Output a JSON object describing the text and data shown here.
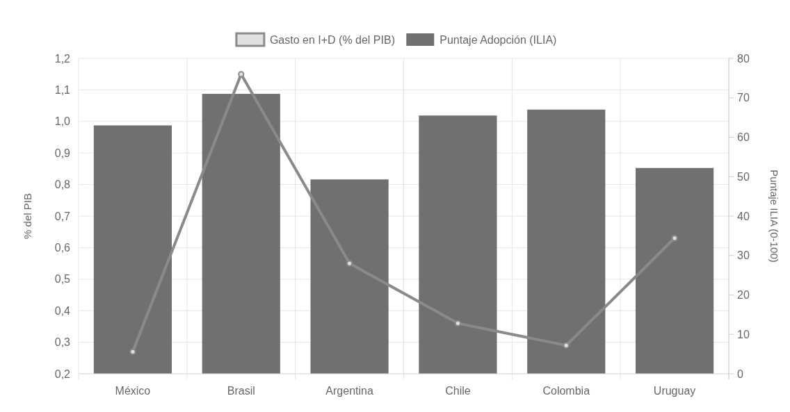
{
  "chart_data": {
    "type": "bar",
    "categories": [
      "México",
      "Brasil",
      "Argentina",
      "Chile",
      "Colombia",
      "Uruguay"
    ],
    "series": [
      {
        "name": "Gasto en I+D (% del PIB)",
        "type": "line",
        "color": "#8a8a8a",
        "values": [
          0.27,
          1.15,
          0.55,
          0.36,
          0.29,
          0.63
        ]
      },
      {
        "name": "Puntaje Adopción (ILIA)",
        "axis": "y2",
        "color": "#707070",
        "values": [
          63,
          71,
          49.3,
          65.5,
          67,
          52.2
        ]
      }
    ],
    "ylabel": "% del PIB",
    "y2label": "Puntaje ILIA (0-100)",
    "ylim": [
      0.2,
      1.2
    ],
    "yticks": [
      {
        "value": 0.2,
        "label": "0,2"
      },
      {
        "value": 0.3,
        "label": "0,3"
      },
      {
        "value": 0.4,
        "label": "0,4"
      },
      {
        "value": 0.5,
        "label": "0,5"
      },
      {
        "value": 0.6,
        "label": "0,6"
      },
      {
        "value": 0.7,
        "label": "0,7"
      },
      {
        "value": 0.8,
        "label": "0,8"
      },
      {
        "value": 0.9,
        "label": "0,9"
      },
      {
        "value": 1.0,
        "label": "1,0"
      },
      {
        "value": 1.1,
        "label": "1,1"
      },
      {
        "value": 1.2,
        "label": "1,2"
      }
    ],
    "y2lim": [
      0,
      80
    ],
    "y2ticks": [
      0,
      10,
      20,
      30,
      40,
      50,
      60,
      70,
      80
    ],
    "grid": true,
    "legend": "top",
    "marker": "circle"
  }
}
